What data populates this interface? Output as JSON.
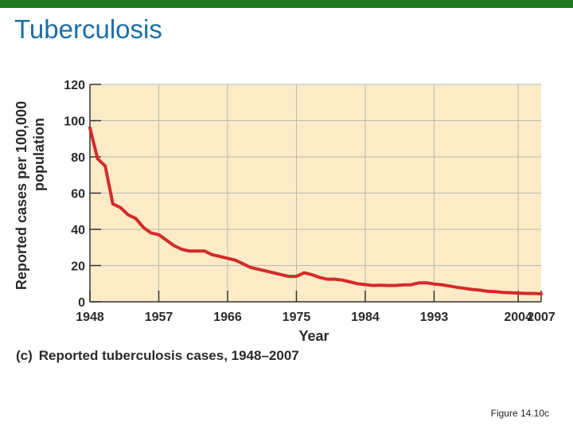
{
  "slide": {
    "title": "Tuberculosis",
    "figure_ref": "Figure 14.10c",
    "caption_letter": "(c)",
    "caption_text": "Reported tuberculosis cases, 1948–2007",
    "accent_color": "#1f7a1f",
    "title_color": "#1a6ea8"
  },
  "chart_data": {
    "type": "line",
    "title": "",
    "xlabel": "Year",
    "ylabel_line1": "Reported cases per 100,000",
    "ylabel_line2": "population",
    "xlim": [
      1948,
      2007
    ],
    "ylim": [
      0,
      120
    ],
    "x_ticks": [
      1948,
      1957,
      1966,
      1975,
      1984,
      1993,
      2004,
      2007
    ],
    "y_ticks": [
      0,
      20,
      40,
      60,
      80,
      100,
      120
    ],
    "grid": true,
    "plot_background": "#fcebc6",
    "grid_color": "#b9b9b9",
    "line_color": "#d42a2a",
    "series": [
      {
        "x": [
          1948,
          1949,
          1950,
          1951,
          1952,
          1953,
          1954,
          1955,
          1956,
          1957,
          1958,
          1959,
          1960,
          1961,
          1962,
          1963,
          1964,
          1965,
          1966,
          1967,
          1968,
          1969,
          1970,
          1971,
          1972,
          1973,
          1974,
          1975,
          1976,
          1977,
          1978,
          1979,
          1980,
          1981,
          1982,
          1983,
          1984,
          1985,
          1986,
          1987,
          1988,
          1989,
          1990,
          1991,
          1992,
          1993,
          1994,
          1995,
          1996,
          1997,
          1998,
          1999,
          2000,
          2001,
          2002,
          2003,
          2004,
          2005,
          2006,
          2007
        ],
        "y": [
          96,
          79,
          75,
          54,
          52,
          48,
          46,
          41,
          38,
          37,
          34,
          31,
          29,
          28,
          28,
          28,
          26,
          25,
          24,
          23,
          21,
          19,
          18,
          17,
          16,
          15,
          14,
          14,
          16,
          15,
          13.5,
          12.5,
          12.5,
          12,
          11,
          10,
          9.5,
          9,
          9.2,
          9,
          9,
          9.3,
          9.4,
          10.4,
          10.5,
          9.8,
          9.4,
          8.7,
          8,
          7.4,
          6.8,
          6.4,
          5.8,
          5.6,
          5.2,
          5,
          4.8,
          4.6,
          4.6,
          4.4
        ]
      }
    ]
  }
}
